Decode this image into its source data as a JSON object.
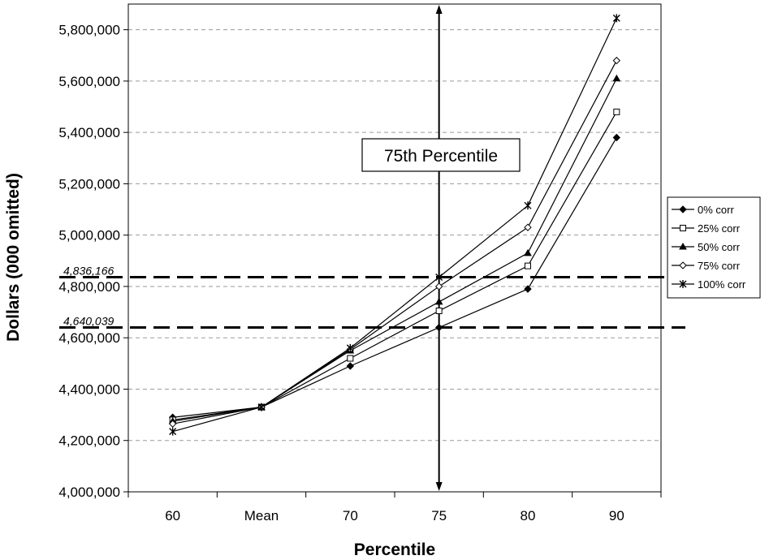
{
  "chart_data": {
    "type": "line",
    "title": "",
    "xlabel": "Percentile",
    "ylabel": "Dollars (000 omitted)",
    "categories": [
      "60",
      "Mean",
      "70",
      "75",
      "80",
      "90"
    ],
    "ylim": [
      4000000,
      5900000
    ],
    "yticks": [
      4000000,
      4200000,
      4400000,
      4600000,
      4800000,
      5000000,
      5200000,
      5400000,
      5600000,
      5800000
    ],
    "ytick_labels": [
      "4,000,000",
      "4,200,000",
      "4,400,000",
      "4,600,000",
      "4,800,000",
      "5,000,000",
      "5,200,000",
      "5,400,000",
      "5,600,000",
      "5,800,000"
    ],
    "grid": "horizontal-dashed",
    "legend_position": "right",
    "series": [
      {
        "name": "0% corr",
        "marker": "diamond-filled",
        "values": [
          4290000,
          4330000,
          4490000,
          4640039,
          4790000,
          5380000
        ]
      },
      {
        "name": "25% corr",
        "marker": "square-open",
        "values": [
          4280000,
          4330000,
          4520000,
          4705000,
          4880000,
          5480000
        ]
      },
      {
        "name": "50% corr",
        "marker": "triangle-filled",
        "values": [
          4275000,
          4330000,
          4550000,
          4740000,
          4930000,
          5610000
        ]
      },
      {
        "name": "75% corr",
        "marker": "diamond-open",
        "values": [
          4265000,
          4330000,
          4555000,
          4800000,
          5030000,
          5680000
        ]
      },
      {
        "name": "100% corr",
        "marker": "asterisk",
        "values": [
          4235000,
          4330000,
          4560000,
          4836166,
          5115000,
          5845000
        ]
      }
    ],
    "reference_lines": [
      {
        "value": 4836166,
        "label": "4,836,166"
      },
      {
        "value": 4640039,
        "label": "4,640,039"
      }
    ],
    "vertical_marker": {
      "category": "75",
      "label": "75th Percentile"
    }
  }
}
